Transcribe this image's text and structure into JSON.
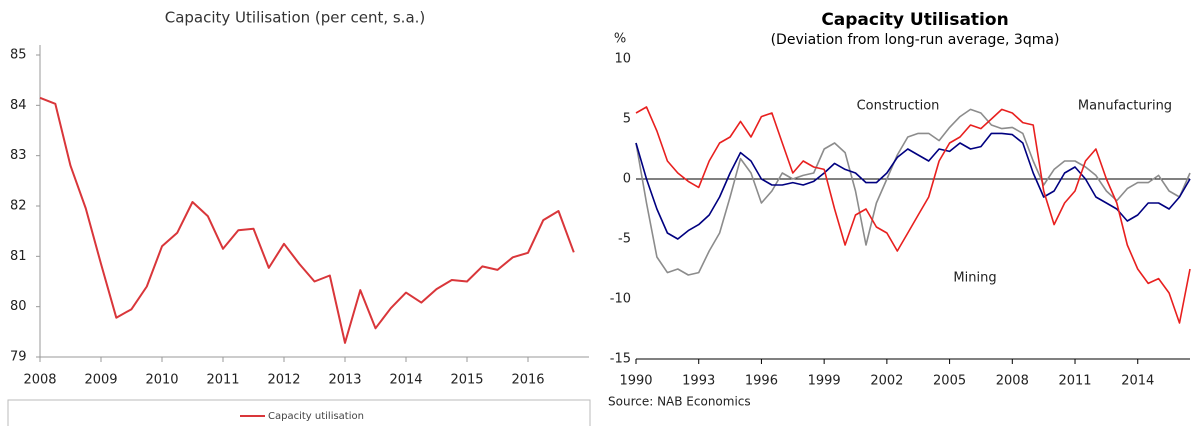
{
  "chart_data": [
    {
      "type": "line",
      "title": "Capacity Utilisation (per cent, s.a.)",
      "x": [
        2008,
        2008.25,
        2008.5,
        2008.75,
        2009,
        2009.25,
        2009.5,
        2009.75,
        2010,
        2010.25,
        2010.5,
        2010.75,
        2011,
        2011.25,
        2011.5,
        2011.75,
        2012,
        2012.25,
        2012.5,
        2012.75,
        2013,
        2013.25,
        2013.5,
        2013.75,
        2014,
        2014.25,
        2014.5,
        2014.75,
        2015,
        2015.25,
        2015.5,
        2015.75,
        2016,
        2016.25,
        2016.5,
        2016.75
      ],
      "series": [
        {
          "name": "Capacity utilisation",
          "color": "#d9363a",
          "values": [
            84.15,
            84.03,
            82.8,
            81.95,
            80.85,
            79.78,
            79.95,
            80.4,
            81.2,
            81.47,
            82.08,
            81.8,
            81.15,
            81.52,
            81.55,
            80.77,
            81.25,
            80.85,
            80.5,
            80.62,
            79.28,
            80.33,
            79.57,
            79.97,
            80.28,
            80.08,
            80.35,
            80.53,
            80.5,
            80.8,
            80.73,
            80.98,
            81.07,
            81.72,
            81.9,
            81.08
          ]
        }
      ],
      "xlim": [
        2008,
        2017
      ],
      "xticks": [
        2008,
        2009,
        2010,
        2011,
        2012,
        2013,
        2014,
        2015,
        2016
      ],
      "ylim": [
        79,
        85
      ],
      "yticks": [
        79,
        80,
        81,
        82,
        83,
        84,
        85
      ],
      "legend": "bottom"
    },
    {
      "type": "line",
      "title": "Capacity Utilisation",
      "subtitle": "(Deviation from long-run average, 3qma)",
      "y_label": "%",
      "source": "Source: NAB Economics",
      "x": [
        1990,
        1990.5,
        1991,
        1991.5,
        1992,
        1992.5,
        1993,
        1993.5,
        1994,
        1994.5,
        1995,
        1995.5,
        1996,
        1996.5,
        1997,
        1997.5,
        1998,
        1998.5,
        1999,
        1999.5,
        2000,
        2000.5,
        2001,
        2001.5,
        2002,
        2002.5,
        2003,
        2003.5,
        2004,
        2004.5,
        2005,
        2005.5,
        2006,
        2006.5,
        2007,
        2007.5,
        2008,
        2008.5,
        2009,
        2009.5,
        2010,
        2010.5,
        2011,
        2011.5,
        2012,
        2012.5,
        2013,
        2013.5,
        2014,
        2014.5,
        2015,
        2015.5,
        2016,
        2016.5
      ],
      "series": [
        {
          "name": "Construction",
          "color": "#8c8c8c",
          "values": [
            3,
            -2,
            -6.5,
            -7.8,
            -7.5,
            -8,
            -7.8,
            -6,
            -4.5,
            -1.5,
            1.7,
            0.5,
            -2,
            -1,
            0.5,
            0,
            0.3,
            0.5,
            2.5,
            3,
            2.2,
            -1,
            -5.5,
            -2,
            0,
            2,
            3.5,
            3.8,
            3.8,
            3.2,
            4.3,
            5.2,
            5.8,
            5.5,
            4.5,
            4.2,
            4.3,
            3.8,
            1.5,
            -0.5,
            0.8,
            1.5,
            1.5,
            1,
            0.3,
            -1,
            -1.8,
            -0.8,
            -0.3,
            -0.3,
            0.3,
            -1,
            -1.5,
            0.5
          ]
        },
        {
          "name": "Manufacturing",
          "color": "#000080",
          "values": [
            3,
            0,
            -2.5,
            -4.5,
            -5,
            -4.3,
            -3.8,
            -3,
            -1.5,
            0.5,
            2.2,
            1.5,
            0,
            -0.5,
            -0.5,
            -0.3,
            -0.5,
            -0.2,
            0.5,
            1.3,
            0.8,
            0.5,
            -0.3,
            -0.3,
            0.5,
            1.8,
            2.5,
            2,
            1.5,
            2.5,
            2.3,
            3,
            2.5,
            2.7,
            3.8,
            3.8,
            3.7,
            3,
            0.5,
            -1.5,
            -1,
            0.5,
            1,
            0,
            -1.5,
            -2,
            -2.5,
            -3.5,
            -3,
            -2,
            -2,
            -2.5,
            -1.5,
            0
          ]
        },
        {
          "name": "Mining",
          "color": "#e8201f",
          "values": [
            5.5,
            6,
            4,
            1.5,
            0.5,
            -0.2,
            -0.7,
            1.5,
            3,
            3.5,
            4.8,
            3.5,
            5.2,
            5.5,
            3,
            0.5,
            1.5,
            1,
            0.8,
            -2.5,
            -5.5,
            -3,
            -2.5,
            -4,
            -4.5,
            -6,
            -4.5,
            -3,
            -1.5,
            1.5,
            3,
            3.5,
            4.5,
            4.2,
            5,
            5.8,
            5.5,
            4.7,
            4.5,
            -1,
            -3.8,
            -2,
            -1,
            1.5,
            2.5,
            0,
            -2,
            -5.5,
            -7.5,
            -8.7,
            -8.3,
            -9.5,
            -12,
            -7.5
          ]
        }
      ],
      "xlim": [
        1990,
        2016.5
      ],
      "xticks": [
        1990,
        1993,
        1996,
        1999,
        2002,
        2005,
        2008,
        2011,
        2014
      ],
      "ylim": [
        -15,
        10
      ],
      "yticks": [
        -15,
        -10,
        -5,
        0,
        5,
        10
      ],
      "zero_line": true
    }
  ]
}
